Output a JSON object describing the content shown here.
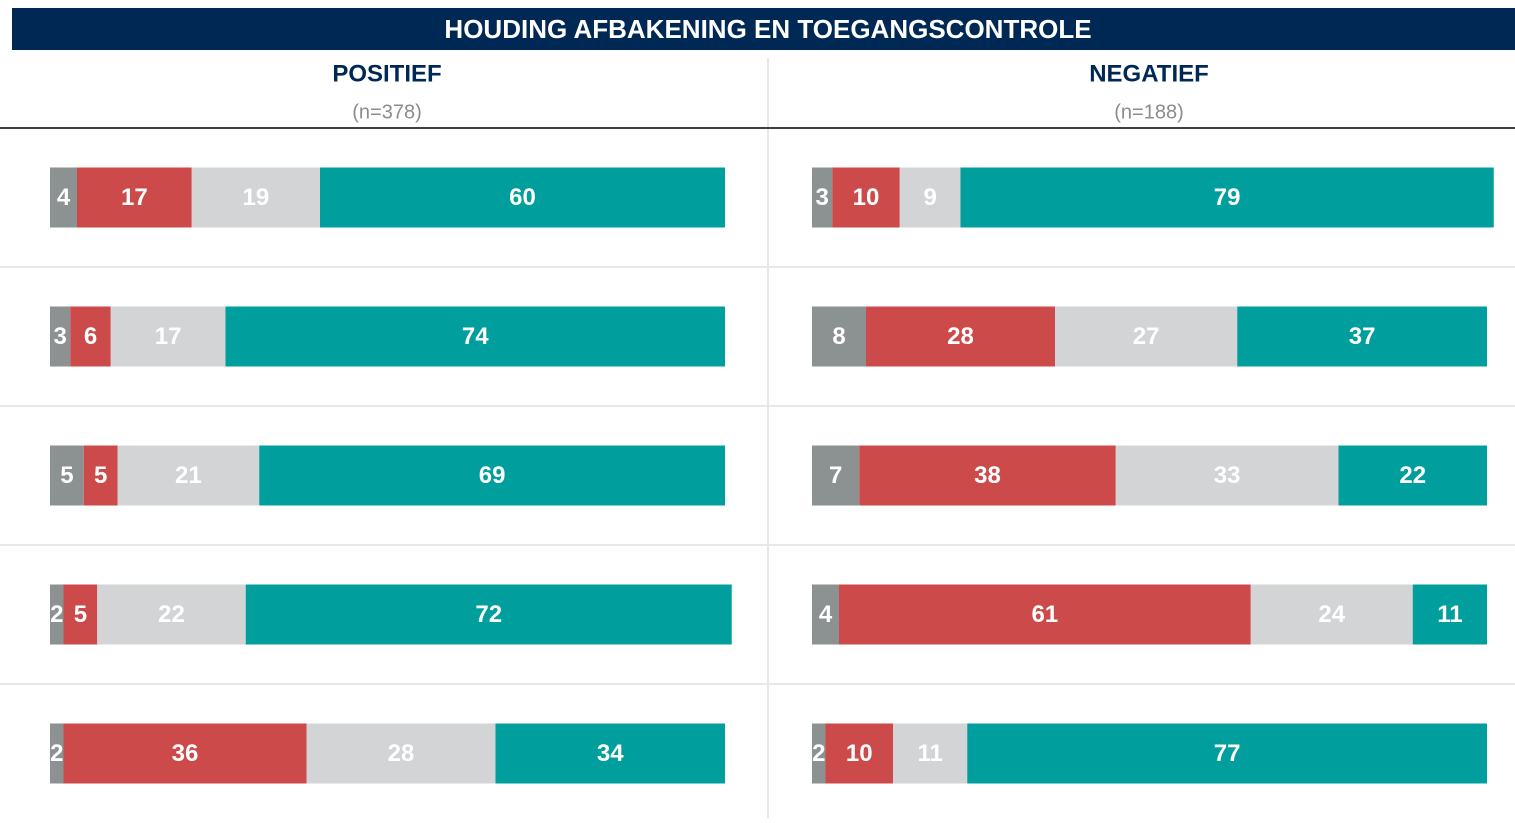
{
  "title": "HOUDING AFBAKENING EN TOEGANGSCONTROLE",
  "chart_data": [
    {
      "type": "stacked-bar",
      "title": "POSITIEF",
      "subtitle": "(n=378)",
      "categories": [
        null,
        null,
        null,
        null,
        null
      ],
      "xlim": [
        0,
        100
      ],
      "series": [
        {
          "color": "#8c9191",
          "values": [
            4,
            3,
            5,
            2,
            2
          ]
        },
        {
          "color": "#cc4a4a",
          "values": [
            17,
            6,
            5,
            5,
            36
          ]
        },
        {
          "color": "#d2d4d5",
          "values": [
            19,
            17,
            21,
            22,
            28
          ]
        },
        {
          "color": "#009e9c",
          "values": [
            60,
            74,
            69,
            72,
            34
          ]
        }
      ]
    },
    {
      "type": "stacked-bar",
      "title": "NEGATIEF",
      "subtitle": "(n=188)",
      "categories": [
        null,
        null,
        null,
        null,
        null
      ],
      "xlim": [
        0,
        100
      ],
      "series": [
        {
          "color": "#8c9191",
          "values": [
            3,
            8,
            7,
            4,
            2
          ]
        },
        {
          "color": "#cc4a4a",
          "values": [
            10,
            28,
            38,
            61,
            10
          ]
        },
        {
          "color": "#d2d4d5",
          "values": [
            9,
            27,
            33,
            24,
            11
          ]
        },
        {
          "color": "#009e9c",
          "values": [
            79,
            37,
            22,
            11,
            77
          ]
        }
      ]
    }
  ]
}
